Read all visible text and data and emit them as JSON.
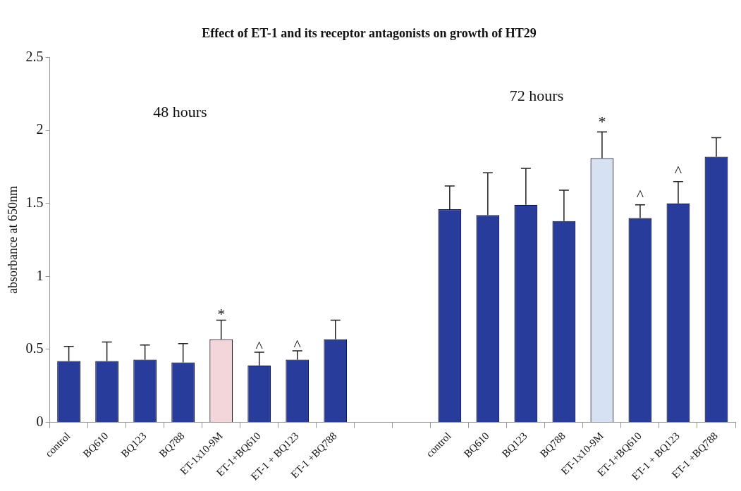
{
  "chart_data": {
    "type": "bar",
    "title": "Effect of ET-1 and its receptor antagonists on growth of HT29",
    "ylabel": "absorbance at 650nm",
    "categories": [
      "control",
      "BQ610",
      "BQ123",
      "BQ788",
      "ET-1x10-9M",
      "ET-1+BQ610",
      "ET-1 + BQ123",
      "ET-1 +BQ788",
      null,
      null,
      "control",
      "BQ610",
      "BQ123",
      "BQ788",
      "ET-1x10-9M",
      "ET-1+BQ610",
      "ET-1 + BQ123",
      "ET-1 +BQ788"
    ],
    "values": [
      0.42,
      0.42,
      0.43,
      0.41,
      0.57,
      0.39,
      0.43,
      0.57,
      null,
      null,
      1.46,
      1.42,
      1.49,
      1.38,
      1.81,
      1.4,
      1.5,
      1.82
    ],
    "errors": [
      0.1,
      0.13,
      0.1,
      0.13,
      0.13,
      0.09,
      0.06,
      0.13,
      null,
      null,
      0.16,
      0.29,
      0.25,
      0.21,
      0.18,
      0.09,
      0.15,
      0.13
    ],
    "colors": [
      "#283c9c",
      "#283c9c",
      "#283c9c",
      "#283c9c",
      "#f2d6da",
      "#283c9c",
      "#283c9c",
      "#283c9c",
      "#283c9c",
      "#283c9c",
      "#283c9c",
      "#283c9c",
      "#283c9c",
      "#283c9c",
      "#d6e2f2",
      "#283c9c",
      "#283c9c",
      "#283c9c"
    ],
    "ylim": [
      0,
      2.5
    ],
    "yticks": [
      0,
      0.5,
      1,
      1.5,
      2,
      2.5
    ],
    "grid": false,
    "legend": false,
    "annotations": [
      "48 hours",
      "72 hours",
      {
        "text": "*",
        "x": "ET-1x10-9M",
        "y": 0.7
      },
      {
        "text": "^",
        "x": "ET-1+BQ610",
        "y": 0.48
      },
      {
        "text": "^",
        "x": "ET-1 + BQ123",
        "y": 0.49
      },
      "*",
      "^",
      "^"
    ]
  }
}
